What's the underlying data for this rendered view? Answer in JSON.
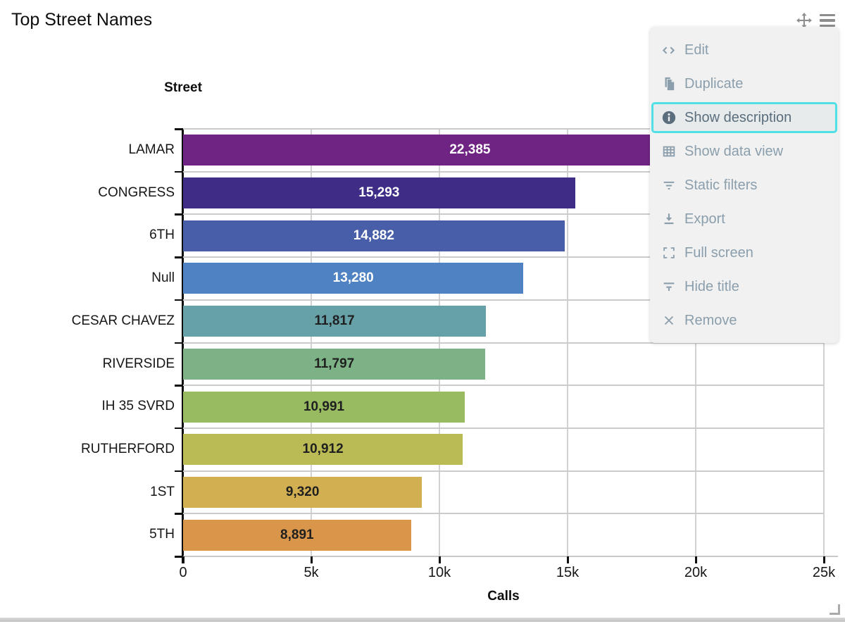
{
  "widget": {
    "title": "Top Street Names"
  },
  "chart_data": {
    "type": "bar",
    "orientation": "horizontal",
    "title": "Top Street Names",
    "xlabel": "Calls",
    "ylabel": "Street",
    "xlim": [
      0,
      25000
    ],
    "grid": true,
    "legend": false,
    "categories": [
      "LAMAR",
      "CONGRESS",
      "6TH",
      "Null",
      "CESAR CHAVEZ",
      "RIVERSIDE",
      "IH 35 SVRD",
      "RUTHERFORD",
      "1ST",
      "5TH"
    ],
    "values": [
      22385,
      15293,
      14882,
      13280,
      11817,
      11797,
      10991,
      10912,
      9320,
      8891
    ],
    "value_labels": [
      "22,385",
      "15,293",
      "14,882",
      "13,280",
      "11,817",
      "11,797",
      "10,991",
      "10,912",
      "9,320",
      "8,891"
    ],
    "bar_colors": [
      "#6F2483",
      "#3F2C87",
      "#485EA8",
      "#4E82C3",
      "#67A1A8",
      "#7DB286",
      "#98BB61",
      "#BABB55",
      "#D2B052",
      "#D9954A"
    ],
    "value_label_colors": [
      "#ffffff",
      "#ffffff",
      "#ffffff",
      "#ffffff",
      "#1f1f1f",
      "#1f1f1f",
      "#1f1f1f",
      "#1f1f1f",
      "#1f1f1f",
      "#1f1f1f"
    ],
    "x_ticks": [
      {
        "value": 0,
        "label": "0"
      },
      {
        "value": 5000,
        "label": "5k"
      },
      {
        "value": 10000,
        "label": "10k"
      },
      {
        "value": 15000,
        "label": "15k"
      },
      {
        "value": 20000,
        "label": "20k"
      },
      {
        "value": 25000,
        "label": "25k"
      }
    ]
  },
  "menu": {
    "highlight_color": "#4FE0E6",
    "text_color": "#8A9EAC",
    "highlighted_text_color": "#5A6E7D",
    "items": [
      {
        "id": "edit",
        "label": "Edit",
        "icon": "code-icon",
        "highlighted": false
      },
      {
        "id": "duplicate",
        "label": "Duplicate",
        "icon": "duplicate-icon",
        "highlighted": false
      },
      {
        "id": "show-description",
        "label": "Show description",
        "icon": "info-icon",
        "highlighted": true
      },
      {
        "id": "show-data-view",
        "label": "Show data view",
        "icon": "table-icon",
        "highlighted": false
      },
      {
        "id": "static-filters",
        "label": "Static filters",
        "icon": "filter-icon",
        "highlighted": false
      },
      {
        "id": "export",
        "label": "Export",
        "icon": "download-icon",
        "highlighted": false
      },
      {
        "id": "full-screen",
        "label": "Full screen",
        "icon": "fullscreen-icon",
        "highlighted": false
      },
      {
        "id": "hide-title",
        "label": "Hide title",
        "icon": "hide-title-icon",
        "highlighted": false
      },
      {
        "id": "remove",
        "label": "Remove",
        "icon": "remove-icon",
        "highlighted": false
      }
    ]
  }
}
